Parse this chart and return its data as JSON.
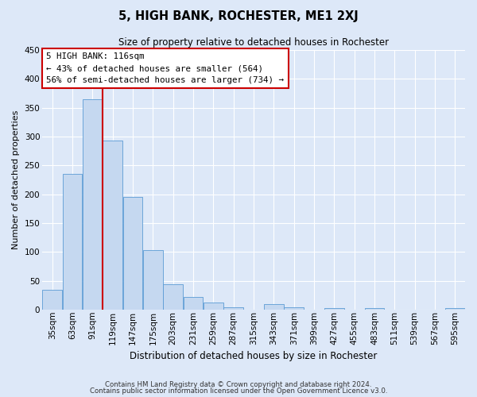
{
  "title": "5, HIGH BANK, ROCHESTER, ME1 2XJ",
  "subtitle": "Size of property relative to detached houses in Rochester",
  "xlabel": "Distribution of detached houses by size in Rochester",
  "ylabel": "Number of detached properties",
  "categories": [
    "35sqm",
    "63sqm",
    "91sqm",
    "119sqm",
    "147sqm",
    "175sqm",
    "203sqm",
    "231sqm",
    "259sqm",
    "287sqm",
    "315sqm",
    "343sqm",
    "371sqm",
    "399sqm",
    "427sqm",
    "455sqm",
    "483sqm",
    "511sqm",
    "539sqm",
    "567sqm",
    "595sqm"
  ],
  "values": [
    35,
    235,
    365,
    293,
    195,
    104,
    44,
    22,
    13,
    5,
    0,
    10,
    5,
    0,
    3,
    0,
    3,
    0,
    0,
    0,
    3
  ],
  "bar_color": "#c5d8f0",
  "bar_edge_color": "#5b9bd5",
  "ylim": [
    0,
    450
  ],
  "yticks": [
    0,
    50,
    100,
    150,
    200,
    250,
    300,
    350,
    400,
    450
  ],
  "property_line_x": 2.5,
  "property_line_color": "#cc0000",
  "annotation_line1": "5 HIGH BANK: 116sqm",
  "annotation_line2": "← 43% of detached houses are smaller (564)",
  "annotation_line3": "56% of semi-detached houses are larger (734) →",
  "annotation_box_color": "#cc0000",
  "bg_color": "#dde8f8",
  "plot_bg_color": "#dde8f8",
  "grid_color": "#ffffff",
  "footer_line1": "Contains HM Land Registry data © Crown copyright and database right 2024.",
  "footer_line2": "Contains public sector information licensed under the Open Government Licence v3.0."
}
